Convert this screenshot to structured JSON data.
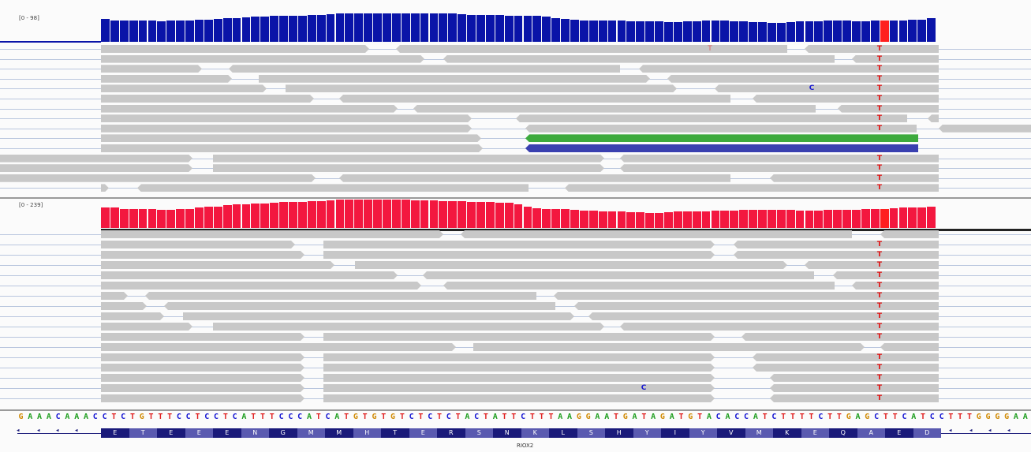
{
  "tracks": [
    {
      "range_label": "[0 - 98]",
      "coverage_color": "#0a14a8",
      "max": 98
    },
    {
      "range_label": "[0 - 239]",
      "coverage_color": "#f3173f",
      "max": 239
    }
  ],
  "coverage_profiles": [
    [
      78,
      74,
      72,
      72,
      72,
      72,
      70,
      72,
      74,
      74,
      76,
      76,
      78,
      80,
      82,
      84,
      86,
      86,
      88,
      88,
      88,
      90,
      92,
      92,
      94,
      96,
      98,
      98,
      98,
      98,
      98,
      98,
      98,
      98,
      98,
      96,
      96,
      96,
      94,
      92,
      92,
      92,
      92,
      90,
      90,
      90,
      88,
      86,
      82,
      78,
      76,
      74,
      74,
      72,
      72,
      72,
      70,
      70,
      70,
      70,
      68,
      68,
      70,
      70,
      72,
      72,
      72,
      70,
      70,
      68,
      68,
      66,
      66,
      68,
      70,
      70,
      70,
      72,
      72,
      72,
      70,
      70,
      72,
      72,
      74,
      74,
      76,
      76,
      80
    ],
    [
      70,
      70,
      66,
      66,
      64,
      64,
      62,
      62,
      64,
      66,
      70,
      72,
      74,
      78,
      80,
      82,
      84,
      84,
      86,
      88,
      88,
      90,
      92,
      92,
      94,
      96,
      98,
      98,
      98,
      98,
      96,
      96,
      96,
      94,
      94,
      94,
      92,
      92,
      92,
      90,
      90,
      88,
      86,
      86,
      80,
      72,
      68,
      66,
      64,
      64,
      62,
      60,
      60,
      58,
      56,
      56,
      54,
      54,
      52,
      52,
      54,
      56,
      56,
      58,
      58,
      60,
      60,
      60,
      62,
      62,
      62,
      62,
      62,
      62,
      60,
      60,
      60,
      62,
      62,
      62,
      62,
      64,
      64,
      66,
      68,
      70,
      70,
      70,
      72
    ]
  ],
  "mismatch_base": "T",
  "other_mismatch_base": "C",
  "reference_sequence": "GAAACAAACCTCTGTTTCCTCCTCATTTCCCATCATGTGTGTCTCTCTACTATTCTTTAAGGAATGATAGATGTACACCATCTTTTCTTGAGCTTCATCCTTTGGGGAA",
  "amino_acids": [
    "E",
    "T",
    "E",
    "E",
    "E",
    "N",
    "G",
    "M",
    "M",
    "H",
    "T",
    "E",
    "R",
    "S",
    "N",
    "K",
    "L",
    "S",
    "H",
    "Y",
    "I",
    "Y",
    "V",
    "M",
    "K",
    "E",
    "Q",
    "A",
    "E",
    "D"
  ],
  "gene_name": "RIOX2",
  "colors": {
    "read": "#c8c8c8",
    "base_A": "#1f9e1f",
    "base_C": "#1515d2",
    "base_G": "#d18b06",
    "base_T": "#e02020",
    "aa_dark": "#1a1a7a",
    "aa_light": "#5a5ab0",
    "green_read": "#3daa3d",
    "blue_read": "#3a40b0"
  }
}
